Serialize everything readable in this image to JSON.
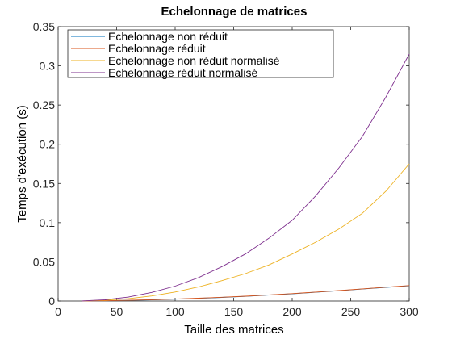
{
  "chart_data": {
    "type": "line",
    "title": "Echelonnage de matrices",
    "xlabel": "Taille des matrices",
    "ylabel": "Temps d'exécution (s)",
    "xlim": [
      0,
      300
    ],
    "ylim": [
      0,
      0.35
    ],
    "xticks": [
      0,
      50,
      100,
      150,
      200,
      250,
      300
    ],
    "yticks": [
      0,
      0.05,
      0.1,
      0.15,
      0.2,
      0.25,
      0.3,
      0.35
    ],
    "ytick_labels": [
      "0",
      "0.05",
      "0.1",
      "0.15",
      "0.2",
      "0.25",
      "0.3",
      "0.35"
    ],
    "grid": false,
    "legend_position": "top-left",
    "x": [
      20,
      40,
      60,
      80,
      100,
      120,
      140,
      160,
      180,
      200,
      220,
      240,
      260,
      280,
      300
    ],
    "series": [
      {
        "name": "Echelonnage non réduit",
        "color": "#0072bd",
        "values": [
          0.0,
          0.0003,
          0.0008,
          0.0015,
          0.0024,
          0.0034,
          0.0046,
          0.006,
          0.0076,
          0.0093,
          0.0112,
          0.0132,
          0.0153,
          0.0175,
          0.0195
        ]
      },
      {
        "name": "Echelonnage réduit",
        "color": "#d95319",
        "values": [
          0.0,
          0.0003,
          0.0009,
          0.0016,
          0.0025,
          0.0036,
          0.0048,
          0.0062,
          0.0078,
          0.0095,
          0.0114,
          0.0134,
          0.0155,
          0.0177,
          0.0198
        ]
      },
      {
        "name": "Echelonnage non réduit normalisé",
        "color": "#edb120",
        "values": [
          0.0,
          0.001,
          0.003,
          0.0065,
          0.0115,
          0.018,
          0.026,
          0.035,
          0.046,
          0.06,
          0.075,
          0.092,
          0.112,
          0.14,
          0.175
        ]
      },
      {
        "name": "Echelonnage réduit normalisé",
        "color": "#7e2f8e",
        "values": [
          0.0,
          0.0015,
          0.005,
          0.011,
          0.019,
          0.03,
          0.044,
          0.06,
          0.08,
          0.103,
          0.134,
          0.17,
          0.21,
          0.26,
          0.315
        ]
      }
    ]
  }
}
